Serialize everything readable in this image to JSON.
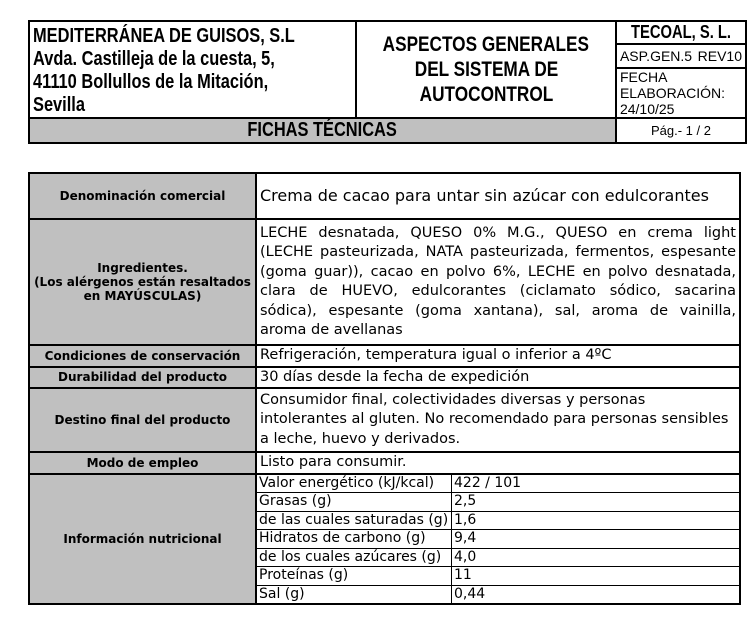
{
  "header": {
    "company_lines": [
      "MEDITERRÁNEA DE GUISOS, S.L",
      "Avda. Castilleja de la cuesta, 5,",
      "41110 Bollullos de la Mitación,",
      "Sevilla"
    ],
    "title_lines": [
      "ASPECTOS GENERALES",
      "DEL SISTEMA DE",
      "AUTOCONTROL"
    ],
    "supplier": "TECOAL, S. L.",
    "code": "ASP.GEN.5",
    "revision": "REV10",
    "date": "FECHA ELABORACIÓN: 24/10/25",
    "section": "FICHAS TÉCNICAS",
    "page": "Pág.- 1 / 2"
  },
  "sheet": {
    "rows": [
      {
        "label": "Denominación comercial",
        "value": "Crema de cacao para untar sin azúcar con edulcorantes"
      },
      {
        "label": "Ingredientes.",
        "label2": "(Los alérgenos están resaltados en MAYÚSCULAS)",
        "value": "LECHE desnatada, QUESO 0% M.G., QUESO en crema light (LECHE pasteurizada, NATA pasteurizada, fermentos, espesante (goma guar)), cacao en polvo 6%, LECHE en polvo desnatada, clara de HUEVO, edulcorantes (ciclamato sódico, sacarina sódica), espesante (goma xantana), sal, aroma de vainilla, aroma de avellanas"
      },
      {
        "label": "Condiciones de conservación",
        "value": "Refrigeración, temperatura igual o inferior a 4ºC"
      },
      {
        "label": "Durabilidad del producto",
        "value": "30 días desde la fecha de expedición"
      },
      {
        "label": "Destino final del producto",
        "value": "Consumidor final, colectividades diversas y personas intolerantes al gluten. No recomendado para personas sensibles a leche, huevo y derivados."
      },
      {
        "label": "Modo de empleo",
        "value": "Listo para consumir."
      }
    ],
    "nutrition_label": "Información nutricional",
    "nutrition": [
      {
        "name": "Valor energético (kJ/kcal)",
        "value": "422 / 101"
      },
      {
        "name": "Grasas (g)",
        "value": "2,5"
      },
      {
        "name": "de las cuales saturadas (g)",
        "value": "1,6"
      },
      {
        "name": "Hidratos de carbono (g)",
        "value": "9,4"
      },
      {
        "name": "de los cuales azúcares (g)",
        "value": "4,0"
      },
      {
        "name": "Proteínas (g)",
        "value": "11"
      },
      {
        "name": "Sal (g)",
        "value": "0,44"
      }
    ]
  }
}
